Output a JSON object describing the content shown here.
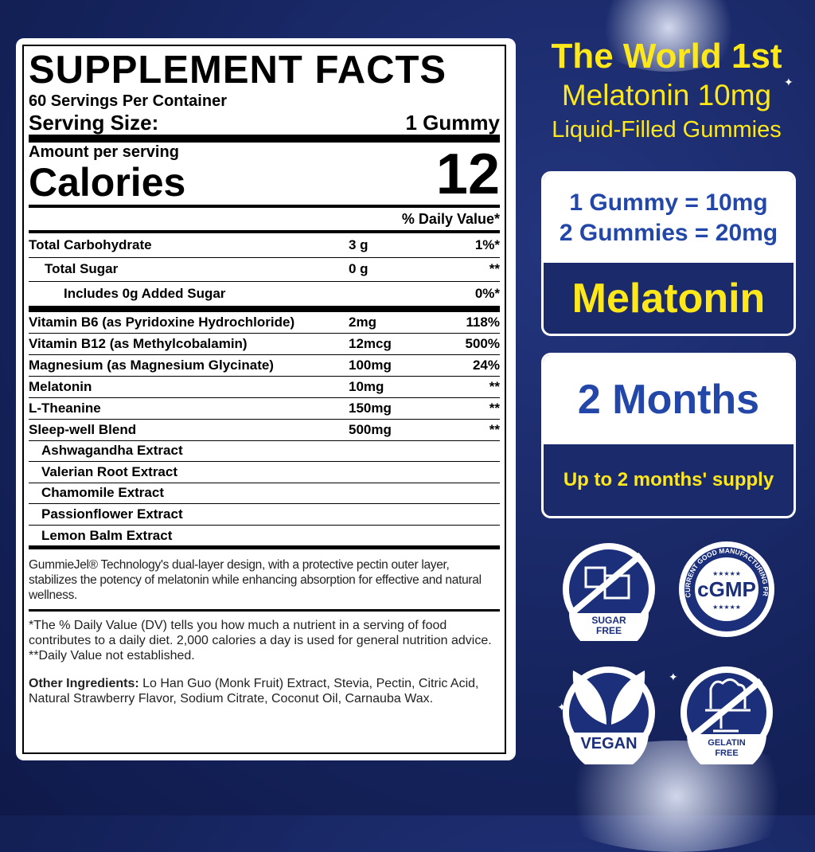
{
  "label": {
    "title": "SUPPLEMENT FACTS",
    "servings": "60 Servings Per Container",
    "serving_size_label": "Serving Size:",
    "serving_size_value": "1 Gummy",
    "amount_per_serving": "Amount per serving",
    "calories_label": "Calories",
    "calories_value": "12",
    "dv_header": "% Daily Value*",
    "rows_top": [
      {
        "name": "Total Carbohydrate",
        "amount": "3 g",
        "dv": "1%*"
      },
      {
        "name": "Total Sugar",
        "amount": "0 g",
        "dv": "**"
      },
      {
        "name": "Includes 0g Added Sugar",
        "amount": "",
        "dv": "0%*"
      }
    ],
    "rows": [
      {
        "name": "Vitamin B6 (as Pyridoxine Hydrochloride)",
        "amount": "2mg",
        "dv": "118%"
      },
      {
        "name": "Vitamin B12 (as Methylcobalamin)",
        "amount": "12mcg",
        "dv": "500%"
      },
      {
        "name": "Magnesium (as Magnesium Glycinate)",
        "amount": "100mg",
        "dv": "24%"
      },
      {
        "name": "Melatonin",
        "amount": "10mg",
        "dv": "**"
      },
      {
        "name": "L-Theanine",
        "amount": "150mg",
        "dv": "**"
      },
      {
        "name": "Sleep-well Blend",
        "amount": "500mg",
        "dv": "**"
      }
    ],
    "blend": [
      "Ashwagandha Extract",
      "Valerian Root Extract",
      "Chamomile Extract",
      "Passionflower Extract",
      "Lemon Balm Extract"
    ],
    "tech_note": "GummieJel® Technology's dual-layer design, with a protective pectin outer layer, stabilizes the potency of melatonin while enhancing absorption for effective and natural wellness.",
    "footnote1": "*The % Daily Value (DV) tells you how much a nutrient in a serving of food contributes to a daily diet. 2,000 calories a day is used for general nutrition advice.",
    "footnote2": "**Daily Value not established.",
    "other_label": "Other Ingredients:",
    "other_text": " Lo Han Guo (Monk Fruit) Extract, Stevia, Pectin, Citric Acid, Natural Strawberry Flavor, Sodium Citrate, Coconut Oil, Carnauba Wax."
  },
  "headline": {
    "line1": "The World 1st",
    "line2": "Melatonin 10mg",
    "line3": "Liquid-Filled Gummies"
  },
  "card1": {
    "line1": "1 Gummy = 10mg",
    "line2": "2 Gummies = 20mg",
    "bottom": "Melatonin"
  },
  "card2": {
    "top": "2 Months",
    "bottom": "Up to 2 months' supply"
  },
  "badges": {
    "sugar": "SUGAR FREE",
    "cgmp": "cGMP",
    "cgmp_ring": "CURRENT GOOD MANUFACTURING PRACTICE",
    "vegan": "VEGAN",
    "gelatin": "GELATIN FREE"
  },
  "colors": {
    "background": "#16245f",
    "accent_yellow": "#ffe81a",
    "accent_blue": "#2347a8"
  }
}
